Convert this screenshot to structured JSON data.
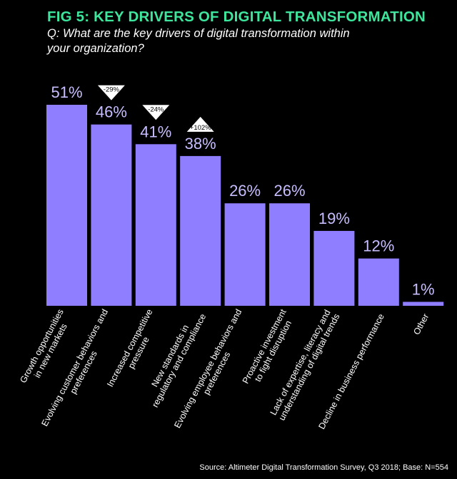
{
  "figure": {
    "title": "FIG 5: KEY DRIVERS OF DIGITAL TRANSFORMATION",
    "question_lines": [
      "Q: What are the key drivers of digital transformation within",
      "your organization?"
    ],
    "source": "Source: Altimeter Digital Transformation Survey, Q3 2018; Base: N=554"
  },
  "colors": {
    "background": "#000000",
    "title": "#3ee59d",
    "bar": "#8f7eff",
    "text": "#ffffff",
    "value_label": "#c7beff"
  },
  "chart_data": {
    "type": "bar",
    "title": "FIG 5: KEY DRIVERS OF DIGITAL TRANSFORMATION",
    "xlabel": "",
    "ylabel": "",
    "ylim": [
      0,
      51
    ],
    "unit": "%",
    "grid": false,
    "categories": [
      "Growth opportunities\nin new markets",
      "Evolving customer behaviors and\npreferences",
      "Increased competitive\npressure",
      "New standards in\nregulatory and compliance",
      "Evolving employee behaviors and\npreferences",
      "Proactive investment\nto fight disruption",
      "Lack of expertise, literacy and\nunderstanding of digital trends",
      "Decline in business performance",
      "Other"
    ],
    "values": [
      51,
      46,
      41,
      38,
      26,
      26,
      19,
      12,
      1
    ],
    "value_labels": [
      "51%",
      "46%",
      "41%",
      "38%",
      "26%",
      "26%",
      "19%",
      "12%",
      "1%"
    ],
    "changes": [
      {
        "category_index": 1,
        "label": "-29%",
        "direction": "down"
      },
      {
        "category_index": 2,
        "label": "-24%",
        "direction": "down"
      },
      {
        "category_index": 3,
        "label": "+102%",
        "direction": "up"
      }
    ]
  }
}
